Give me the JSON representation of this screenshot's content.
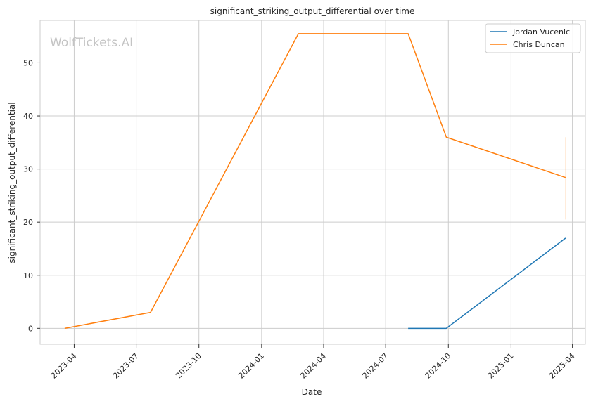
{
  "chart_data": {
    "type": "line",
    "title": "significant_striking_output_differential over time",
    "xlabel": "Date",
    "ylabel": "significant_striking_output_differential",
    "watermark": "WolfTickets.AI",
    "x_axis_type": "date",
    "xlim": [
      "2023-02-10",
      "2025-04-20"
    ],
    "ylim": [
      -3,
      58
    ],
    "x_ticks": [
      "2023-04-01",
      "2023-07-01",
      "2023-10-01",
      "2024-01-01",
      "2024-04-01",
      "2024-07-01",
      "2024-10-01",
      "2025-01-01",
      "2025-04-01"
    ],
    "x_tick_labels": [
      "2023-04",
      "2023-07",
      "2023-10",
      "2024-01",
      "2024-04",
      "2024-07",
      "2024-10",
      "2025-01",
      "2025-04"
    ],
    "y_ticks": [
      0,
      10,
      20,
      30,
      40,
      50
    ],
    "y_tick_labels": [
      "0",
      "10",
      "20",
      "30",
      "40",
      "50"
    ],
    "grid": true,
    "legend_position": "top-right",
    "series": [
      {
        "name": "Jordan Vucenic",
        "color": "#1f77b4",
        "x": [
          "2024-08-03",
          "2024-09-28",
          "2025-03-22"
        ],
        "y": [
          0,
          0,
          17
        ]
      },
      {
        "name": "Chris Duncan",
        "color": "#ff7f0e",
        "x": [
          "2023-03-18",
          "2023-07-22",
          "2024-02-24",
          "2024-08-03",
          "2024-09-28",
          "2025-03-22"
        ],
        "y": [
          0,
          3,
          55.5,
          55.5,
          36,
          28.4
        ]
      }
    ],
    "error_band": {
      "series": "Chris Duncan",
      "x": "2025-03-22",
      "y_low": 20.5,
      "y_high": 36
    }
  }
}
